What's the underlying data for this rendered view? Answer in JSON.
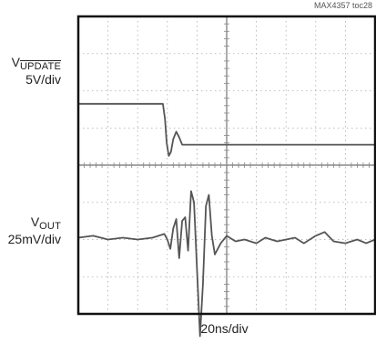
{
  "figure_id": "MAX4357 toc28",
  "channel1": {
    "name": "V",
    "sub": "UPDATE",
    "scale": "5V/div"
  },
  "channel2": {
    "name": "V",
    "sub": "OUT",
    "scale": "25mV/div"
  },
  "timebase": "20ns/div",
  "colors": {
    "frame": "#111111",
    "trace": "#555555",
    "grid": "#aaaaaa",
    "background": "#ffffff"
  },
  "chart_data": {
    "type": "line",
    "grid": true,
    "x_divisions": 10,
    "y_divisions": 8,
    "series": [
      {
        "name": "VUPDATE",
        "x_div": [
          0,
          2.85,
          2.92,
          2.98,
          3.05,
          3.12,
          3.2,
          3.3,
          3.4,
          3.5,
          3.65,
          10
        ],
        "y_div": [
          5.65,
          5.65,
          5.25,
          4.6,
          4.25,
          4.35,
          4.7,
          4.9,
          4.75,
          4.55,
          4.55,
          4.55
        ]
      },
      {
        "name": "VOUT",
        "x_div": [
          0,
          0.5,
          1.0,
          1.5,
          2.0,
          2.5,
          2.9,
          3.0,
          3.1,
          3.2,
          3.3,
          3.4,
          3.5,
          3.6,
          3.7,
          3.8,
          3.9,
          4.0,
          4.1,
          4.2,
          4.3,
          4.4,
          4.5,
          4.6,
          4.8,
          5.0,
          5.3,
          5.6,
          6.0,
          6.3,
          6.7,
          7.0,
          7.3,
          7.6,
          8.0,
          8.3,
          8.6,
          9.0,
          9.4,
          9.7,
          10
        ],
        "y_div": [
          2.05,
          2.1,
          2.0,
          2.05,
          2.0,
          2.05,
          2.15,
          2.0,
          1.75,
          2.3,
          2.55,
          1.5,
          2.5,
          2.6,
          1.7,
          3.3,
          3.0,
          1.2,
          -0.6,
          0.8,
          2.9,
          3.2,
          2.1,
          1.6,
          1.9,
          2.1,
          1.95,
          2.0,
          1.9,
          2.05,
          1.95,
          2.0,
          2.05,
          1.9,
          2.1,
          2.2,
          1.95,
          1.9,
          2.0,
          1.9,
          2.0
        ]
      }
    ]
  }
}
